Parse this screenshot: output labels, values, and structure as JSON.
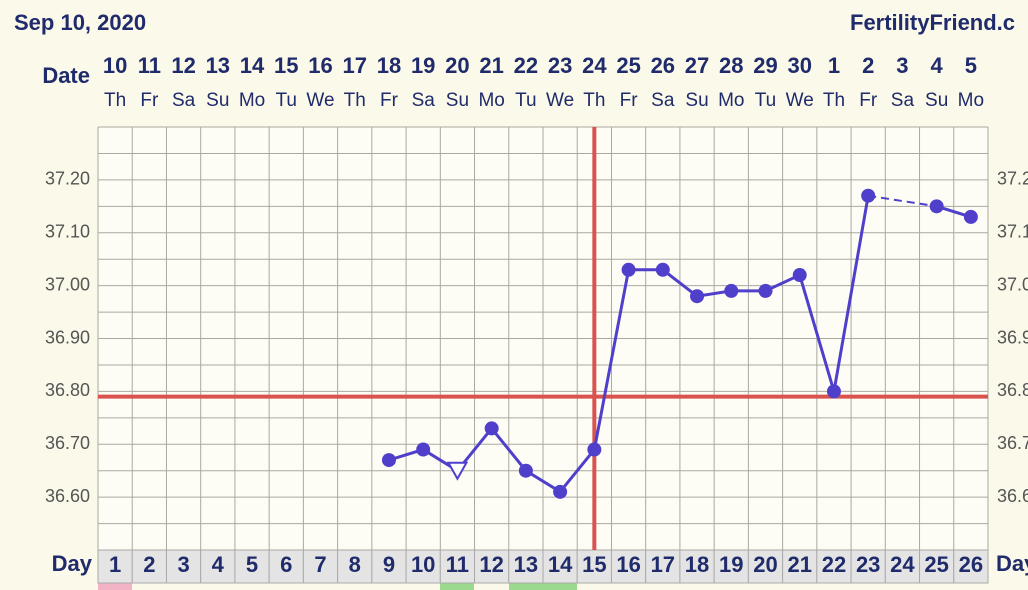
{
  "chart_data": {
    "type": "line",
    "title": "Sep 10, 2020",
    "brand": "FertilityFriend.c",
    "date_label": "Date",
    "day_label": "Day",
    "x": [
      1,
      2,
      3,
      4,
      5,
      6,
      7,
      8,
      9,
      10,
      11,
      12,
      13,
      14,
      15,
      16,
      17,
      18,
      19,
      20,
      21,
      22,
      23,
      24,
      25,
      26
    ],
    "dates": [
      "10",
      "11",
      "12",
      "13",
      "14",
      "15",
      "16",
      "17",
      "18",
      "19",
      "20",
      "21",
      "22",
      "23",
      "24",
      "25",
      "26",
      "27",
      "28",
      "29",
      "30",
      "1",
      "2",
      "3",
      "4",
      "5"
    ],
    "weekdays": [
      "Th",
      "Fr",
      "Sa",
      "Su",
      "Mo",
      "Tu",
      "We",
      "Th",
      "Fr",
      "Sa",
      "Su",
      "Mo",
      "Tu",
      "We",
      "Th",
      "Fr",
      "Sa",
      "Su",
      "Mo",
      "Tu",
      "We",
      "Th",
      "Fr",
      "Sa",
      "Su",
      "Mo"
    ],
    "xlim": [
      0.5,
      26.5
    ],
    "xticks": [
      1,
      2,
      3,
      4,
      5,
      6,
      7,
      8,
      9,
      10,
      11,
      12,
      13,
      14,
      15,
      16,
      17,
      18,
      19,
      20,
      21,
      22,
      23,
      24,
      25,
      26
    ],
    "ylim": [
      36.5,
      37.3
    ],
    "yticks": [
      {
        "value": 36.6,
        "label": "36.60"
      },
      {
        "value": 36.7,
        "label": "36.70"
      },
      {
        "value": 36.8,
        "label": "36.80"
      },
      {
        "value": 36.9,
        "label": "36.90"
      },
      {
        "value": 37.0,
        "label": "37.00"
      },
      {
        "value": 37.1,
        "label": "37.10"
      },
      {
        "value": 37.2,
        "label": "37.20"
      }
    ],
    "series": [
      {
        "color": "#4f3fcb",
        "values": [
          null,
          null,
          null,
          null,
          null,
          null,
          null,
          null,
          36.67,
          36.69,
          36.65,
          36.73,
          36.65,
          36.61,
          36.69,
          37.03,
          37.03,
          36.98,
          36.99,
          36.99,
          37.02,
          36.8,
          37.17,
          null,
          37.15,
          37.13
        ]
      }
    ],
    "hollow_points": [
      10
    ],
    "connect_gaps_dashed": true,
    "coverline": 36.79,
    "coverline_color": "#d9534f",
    "ovulation_day": 15,
    "grid": true
  }
}
